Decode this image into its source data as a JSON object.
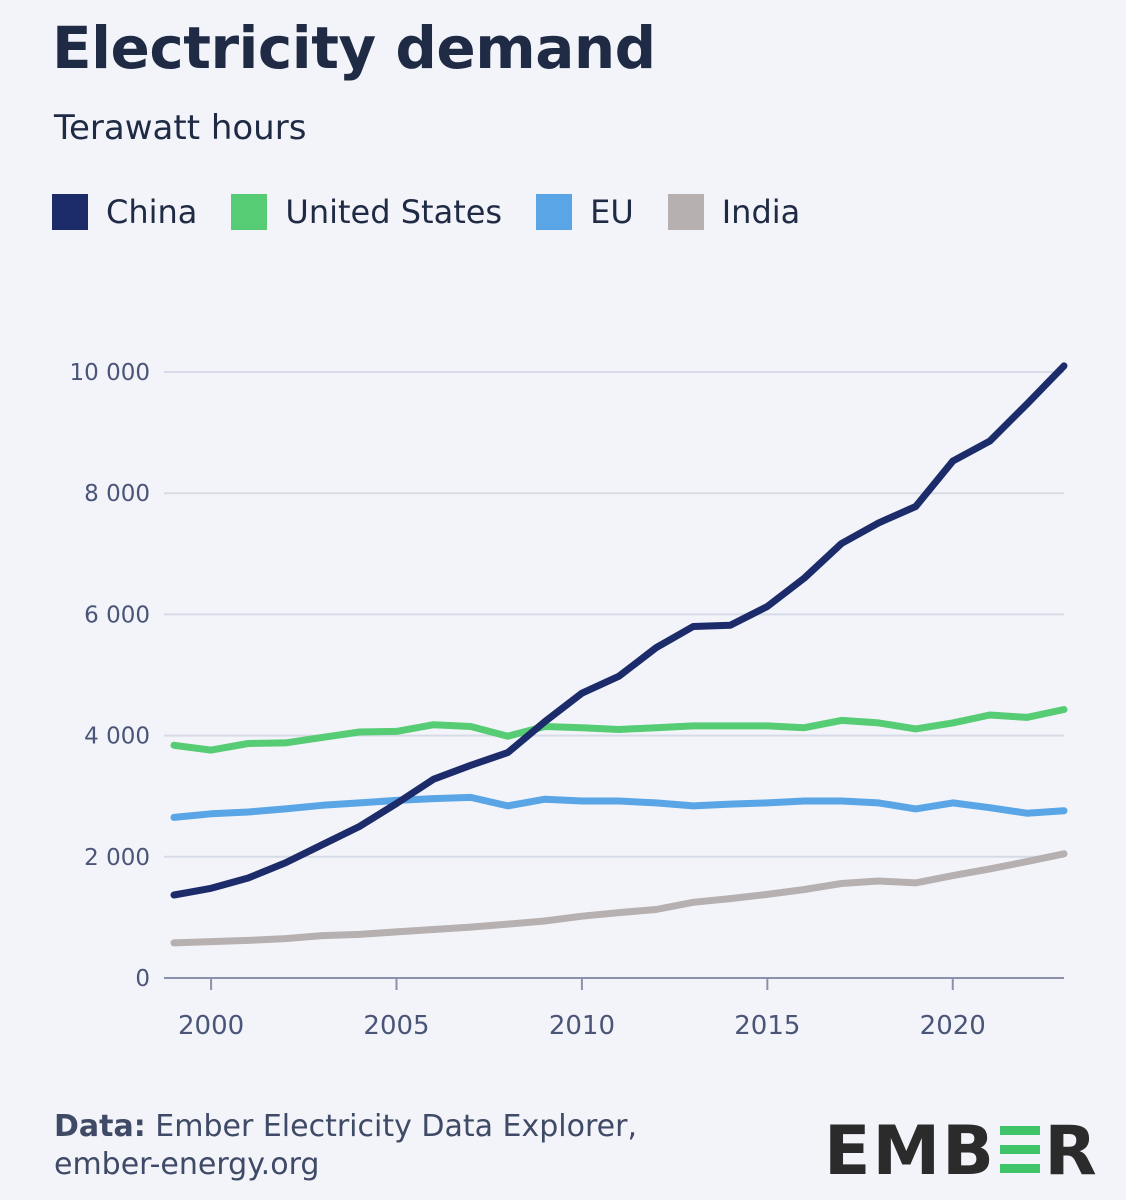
{
  "title": "Electricity demand",
  "subtitle": "Terawatt hours",
  "legend": [
    {
      "name": "China",
      "color": "#1c2c6b"
    },
    {
      "name": "United States",
      "color": "#56cc74"
    },
    {
      "name": "EU",
      "color": "#5aa5e6"
    },
    {
      "name": "India",
      "color": "#b7b0b0"
    }
  ],
  "footer": {
    "source_label": "Data:",
    "source_text": "Ember Electricity Data Explorer,",
    "source_url": "ember-energy.org"
  },
  "logo": {
    "text": "EMBER"
  },
  "chart_data": {
    "type": "line",
    "title": "Electricity demand",
    "ylabel": "Terawatt hours",
    "x": [
      1999,
      2000,
      2001,
      2002,
      2003,
      2004,
      2005,
      2006,
      2007,
      2008,
      2009,
      2010,
      2011,
      2012,
      2013,
      2014,
      2015,
      2016,
      2017,
      2018,
      2019,
      2020,
      2021,
      2022,
      2023
    ],
    "xticks": [
      2000,
      2005,
      2010,
      2015,
      2020
    ],
    "xtick_labels": [
      "2000",
      "2005",
      "2010",
      "2015",
      "2020"
    ],
    "yticks": [
      0,
      2000,
      4000,
      6000,
      8000,
      10000
    ],
    "ytick_labels": [
      "0",
      "2 000",
      "4 000",
      "6 000",
      "8 000",
      "10 000"
    ],
    "ylim": [
      0,
      10000
    ],
    "xlim": [
      1999,
      2023
    ],
    "grid": true,
    "legend_position": "top",
    "series": [
      {
        "name": "China",
        "color": "#1c2c6b",
        "values": [
          1370,
          1480,
          1650,
          1900,
          2200,
          2500,
          2880,
          3280,
          3510,
          3720,
          4230,
          4700,
          4980,
          5450,
          5800,
          5820,
          6130,
          6600,
          7170,
          7510,
          7780,
          8530,
          8860,
          9470,
          10100
        ]
      },
      {
        "name": "United States",
        "color": "#56cc74",
        "values": [
          3840,
          3760,
          3870,
          3880,
          3970,
          4060,
          4070,
          4180,
          4150,
          3990,
          4150,
          4130,
          4100,
          4130,
          4160,
          4160,
          4160,
          4130,
          4250,
          4210,
          4110,
          4210,
          4340,
          4300,
          4430
        ]
      },
      {
        "name": "EU",
        "color": "#5aa5e6",
        "values": [
          2650,
          2710,
          2740,
          2790,
          2850,
          2890,
          2930,
          2960,
          2980,
          2840,
          2950,
          2920,
          2920,
          2890,
          2840,
          2870,
          2890,
          2920,
          2920,
          2890,
          2790,
          2890,
          2810,
          2720,
          2760
        ]
      },
      {
        "name": "India",
        "color": "#b7b0b0",
        "values": [
          580,
          600,
          620,
          650,
          700,
          720,
          760,
          800,
          840,
          890,
          940,
          1020,
          1080,
          1130,
          1250,
          1310,
          1380,
          1460,
          1560,
          1600,
          1570,
          1690,
          1800,
          1920,
          2050
        ]
      }
    ]
  }
}
